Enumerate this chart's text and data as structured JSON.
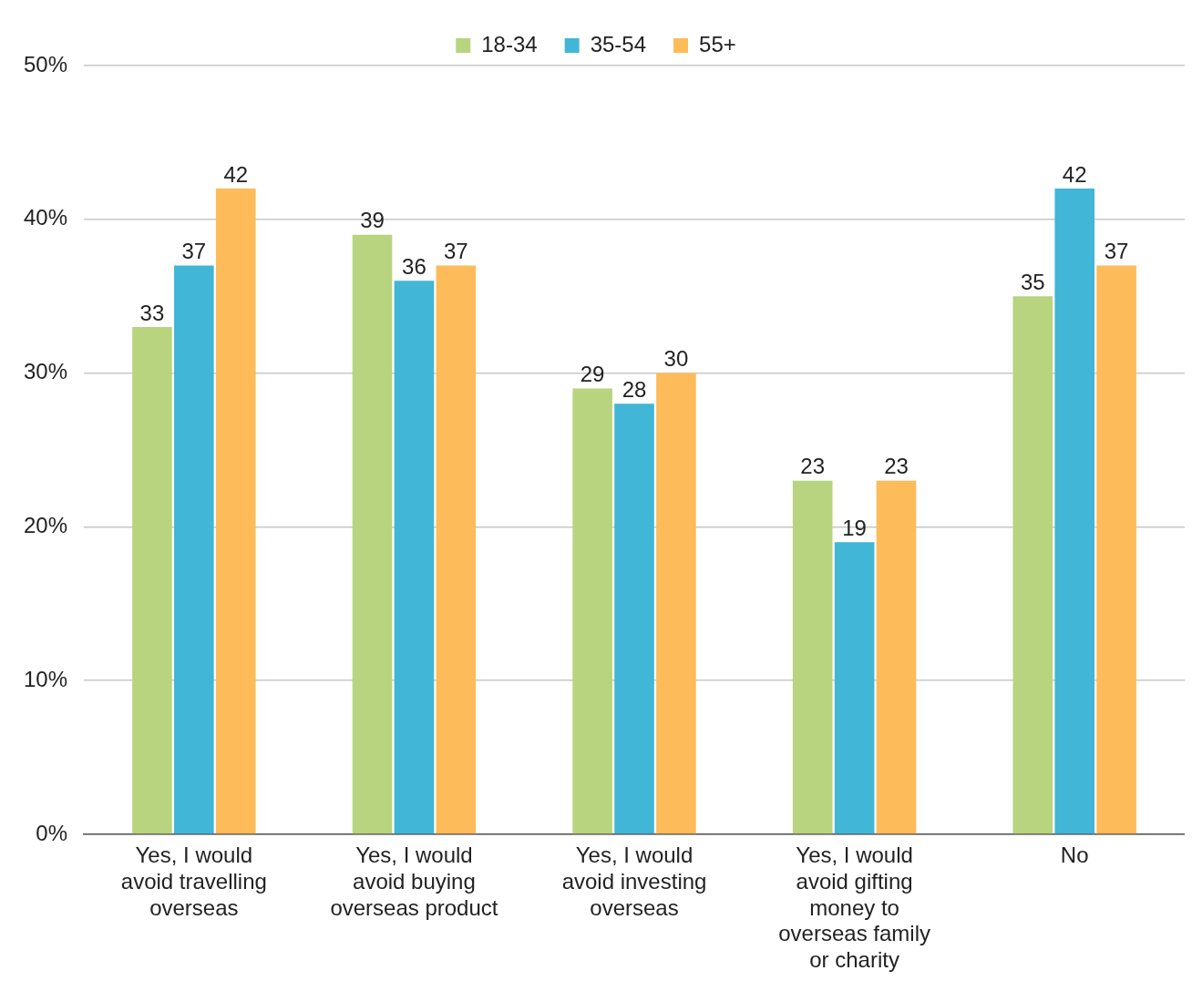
{
  "chart_data": {
    "type": "bar",
    "categories": [
      "Yes, I would avoid travelling overseas",
      "Yes, I would avoid buying overseas product",
      "Yes, I would avoid investing overseas",
      "Yes, I would avoid gifting money to overseas family or charity",
      "No"
    ],
    "series": [
      {
        "name": "18-34",
        "color": "#b8d47f",
        "values": [
          33,
          39,
          29,
          23,
          35
        ]
      },
      {
        "name": "35-54",
        "color": "#41b6d6",
        "values": [
          37,
          36,
          28,
          19,
          42
        ]
      },
      {
        "name": "55+",
        "color": "#fdbb5a",
        "values": [
          42,
          37,
          30,
          23,
          37
        ]
      }
    ],
    "ylim": [
      0,
      50
    ],
    "yticks": [
      {
        "value": 0,
        "label": "0%"
      },
      {
        "value": 10,
        "label": "10%"
      },
      {
        "value": 20,
        "label": "20%"
      },
      {
        "value": 30,
        "label": "30%"
      },
      {
        "value": 40,
        "label": "40%"
      },
      {
        "value": 50,
        "label": "50%"
      }
    ],
    "grid": "y",
    "legend": "top",
    "data_labels": true
  }
}
